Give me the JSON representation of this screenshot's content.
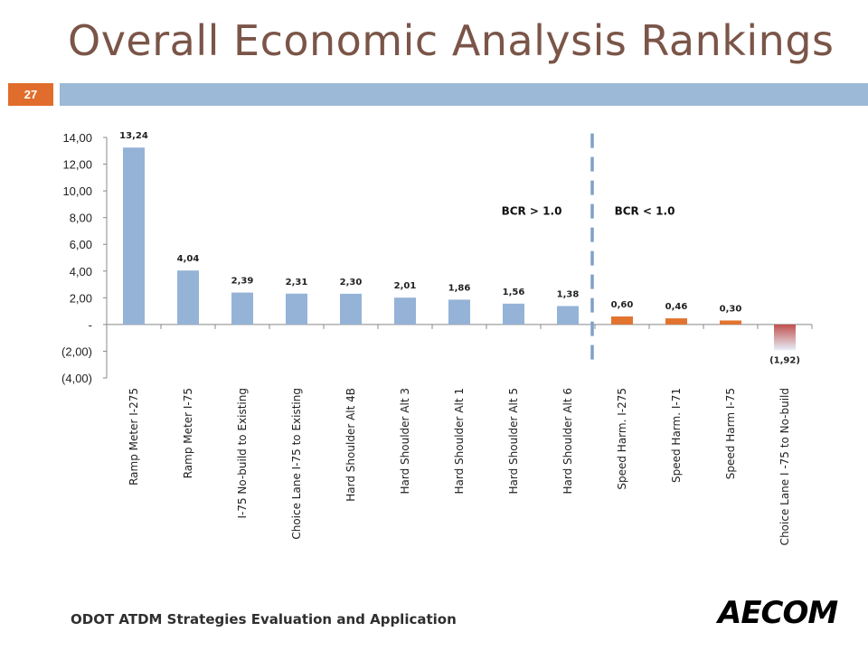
{
  "slide": {
    "title": "Overall Economic Analysis Rankings",
    "number": "27",
    "footer": "ODOT ATDM Strategies Evaluation and Application",
    "logo_text": "AECOM"
  },
  "colors": {
    "blue": "#95b3d7",
    "orange": "#e2742f",
    "red": "#c0504d",
    "title": "#7a5548",
    "band": "#9cbad7",
    "badge": "#e06d2b"
  },
  "chart_data": {
    "type": "bar",
    "categories": [
      "Ramp Meter I-275",
      "Ramp Meter I-75",
      "I-75 No-build to Existing",
      "Choice Lane I-75 to Existing",
      "Hard Shoulder Alt 4B",
      "Hard Shoulder Alt 3",
      "Hard Shoulder Alt 1",
      "Hard Shoulder Alt 5",
      "Hard Shoulder Alt 6",
      "Speed Harm. I-275",
      "Speed Harm. I-71",
      "Speed Harm I-75",
      "Choice Lane I -75 to No-build"
    ],
    "values": [
      13.24,
      4.04,
      2.39,
      2.31,
      2.3,
      2.01,
      1.86,
      1.56,
      1.38,
      0.6,
      0.46,
      0.3,
      -1.92
    ],
    "value_labels": [
      "13,24",
      "4,04",
      "2,39",
      "2,31",
      "2,30",
      "2,01",
      "1,86",
      "1,56",
      "1,38",
      "0,60",
      "0,46",
      "0,30",
      "(1,92)"
    ],
    "bar_colors": [
      "blue",
      "blue",
      "blue",
      "blue",
      "blue",
      "blue",
      "blue",
      "blue",
      "blue",
      "orange",
      "orange",
      "orange",
      "red"
    ],
    "ylim": [
      -4,
      14
    ],
    "y_ticks": [
      14,
      12,
      10,
      8,
      6,
      4,
      2,
      0,
      -2,
      -4
    ],
    "y_tick_labels": [
      "14,00",
      "12,00",
      "10,00",
      "8,00",
      "6,00",
      "4,00",
      "2,00",
      "-",
      "(2,00)",
      "(4,00)"
    ],
    "annotations": {
      "left": "BCR > 1.0",
      "right": "BCR < 1.0"
    },
    "divider_after_index": 8,
    "grid": false,
    "legend": "none"
  }
}
